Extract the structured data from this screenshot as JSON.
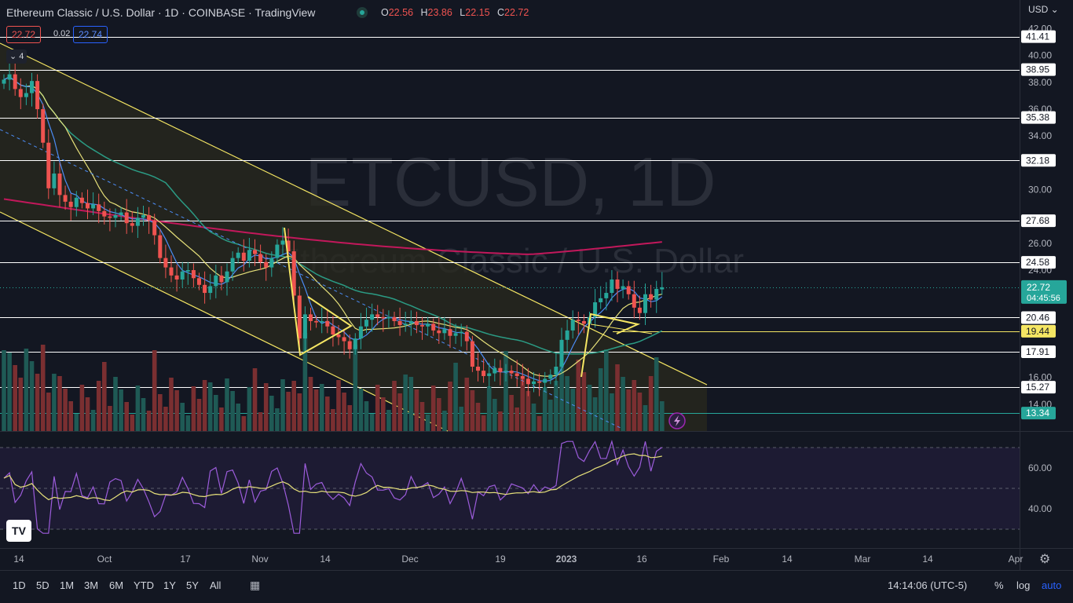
{
  "header": {
    "title": "Ethereum Classic / U.S. Dollar · 1D · COINBASE · TradingView",
    "ohlc": {
      "o_label": "O",
      "o": "22.56",
      "h_label": "H",
      "h": "23.86",
      "l_label": "L",
      "l": "22.15",
      "c_label": "C",
      "c": "22.72"
    },
    "bid": "22.72",
    "spread": "0.02",
    "ask": "22.74",
    "indicator_count": "4",
    "currency": "USD"
  },
  "watermark": {
    "symbol": "ETCUSD, 1D",
    "name": "Ethereum Classic / U.S. Dollar"
  },
  "colors": {
    "bg": "#131722",
    "up": "#26a69a",
    "down": "#ef5350",
    "ma200": "#c2185b",
    "ma50": "#2b9b84",
    "ma20": "#e6e07a",
    "ma9": "#4c8df6",
    "rsi": "#9c5cdb",
    "channel": "#f5e663",
    "hline": "#ffffff",
    "accent": "#2962ff"
  },
  "chart_data": {
    "type": "candlestick",
    "symbol": "ETCUSD",
    "timeframe": "1D",
    "ylim": [
      12,
      42
    ],
    "y_ticks": [
      "14.00",
      "16.00",
      "24.00",
      "26.00",
      "30.00",
      "34.00",
      "36.00",
      "38.00",
      "40.00",
      "42.00"
    ],
    "x_ticks": [
      "14",
      "Oct",
      "17",
      "Nov",
      "14",
      "Dec",
      "19",
      "2023",
      "16",
      "Feb",
      "14",
      "Mar",
      "14",
      "Apr"
    ],
    "start_date": "2022-09-14",
    "levels": [
      41.41,
      38.95,
      35.38,
      32.18,
      27.68,
      24.58,
      20.46,
      17.91,
      15.27,
      13.34
    ],
    "highlight_level": 19.44,
    "last_price": "22.72",
    "countdown": "04:45:56",
    "close": [
      38.2,
      38.6,
      37.5,
      36.9,
      37.2,
      38.1,
      36.0,
      33.5,
      30.1,
      31.2,
      29.6,
      29.1,
      28.7,
      29.4,
      29.0,
      28.6,
      28.9,
      28.4,
      28.0,
      27.9,
      28.1,
      28.3,
      27.5,
      27.3,
      27.9,
      28.1,
      27.7,
      26.6,
      24.9,
      24.2,
      23.6,
      23.3,
      23.9,
      24.0,
      23.4,
      22.9,
      22.3,
      22.8,
      23.6,
      23.1,
      23.9,
      24.9,
      25.3,
      24.7,
      25.5,
      25.2,
      24.6,
      24.2,
      24.9,
      25.9,
      26.2,
      25.4,
      22.1,
      18.9,
      20.7,
      20.2,
      20.1,
      20.2,
      19.8,
      19.2,
      19.0,
      18.7,
      18.1,
      18.9,
      19.8,
      20.3,
      20.7,
      20.5,
      20.4,
      20.5,
      20.2,
      19.9,
      20.0,
      20.2,
      19.9,
      19.8,
      20.0,
      19.5,
      19.3,
      19.6,
      19.1,
      19.3,
      19.4,
      18.7,
      16.8,
      16.5,
      16.1,
      16.3,
      16.7,
      16.4,
      16.5,
      16.3,
      16.1,
      15.9,
      15.5,
      15.7,
      15.6,
      15.9,
      16.2,
      16.8,
      18.8,
      19.5,
      20.3,
      20.2,
      20.0,
      20.5,
      21.6,
      21.9,
      22.3,
      23.3,
      22.6,
      22.8,
      22.2,
      21.2,
      20.8,
      22.2,
      21.8,
      22.6,
      22.72
    ],
    "open": [
      37.9,
      38.2,
      38.6,
      37.5,
      36.9,
      37.2,
      38.1,
      36.0,
      33.5,
      30.1,
      31.2,
      29.6,
      29.1,
      28.7,
      29.4,
      29.0,
      28.6,
      28.9,
      28.4,
      28.0,
      27.9,
      28.1,
      28.3,
      27.5,
      27.3,
      27.9,
      28.1,
      27.7,
      26.6,
      24.9,
      24.2,
      23.6,
      23.3,
      23.9,
      24.0,
      23.4,
      22.9,
      22.3,
      22.8,
      23.6,
      23.1,
      23.9,
      24.9,
      25.3,
      24.7,
      25.5,
      25.2,
      24.6,
      24.2,
      24.9,
      25.9,
      26.2,
      25.4,
      22.1,
      18.9,
      20.7,
      20.2,
      20.1,
      20.2,
      19.8,
      19.2,
      19.0,
      18.7,
      18.1,
      18.9,
      19.8,
      20.3,
      20.7,
      20.5,
      20.4,
      20.5,
      20.2,
      19.9,
      20.0,
      20.2,
      19.9,
      19.8,
      20.0,
      19.5,
      19.3,
      19.6,
      19.1,
      19.3,
      19.4,
      18.7,
      16.8,
      16.5,
      16.1,
      16.3,
      16.7,
      16.4,
      16.5,
      16.3,
      16.1,
      15.9,
      15.5,
      15.7,
      15.6,
      15.9,
      16.2,
      16.8,
      18.8,
      19.5,
      20.3,
      20.2,
      20.0,
      20.5,
      21.6,
      21.9,
      22.3,
      23.3,
      22.6,
      22.8,
      22.2,
      21.2,
      20.8,
      22.2,
      21.8,
      22.56
    ],
    "high_last": 23.86,
    "low_last": 22.15
  },
  "rsi": {
    "ticks": [
      "60.00",
      "40.00"
    ]
  },
  "toolbar": {
    "timeframes": [
      "1D",
      "5D",
      "1M",
      "3M",
      "6M",
      "YTD",
      "1Y",
      "5Y",
      "All"
    ],
    "clock": "14:14:06 (UTC-5)",
    "pct": "%",
    "log": "log",
    "auto": "auto"
  },
  "logo": "TV"
}
